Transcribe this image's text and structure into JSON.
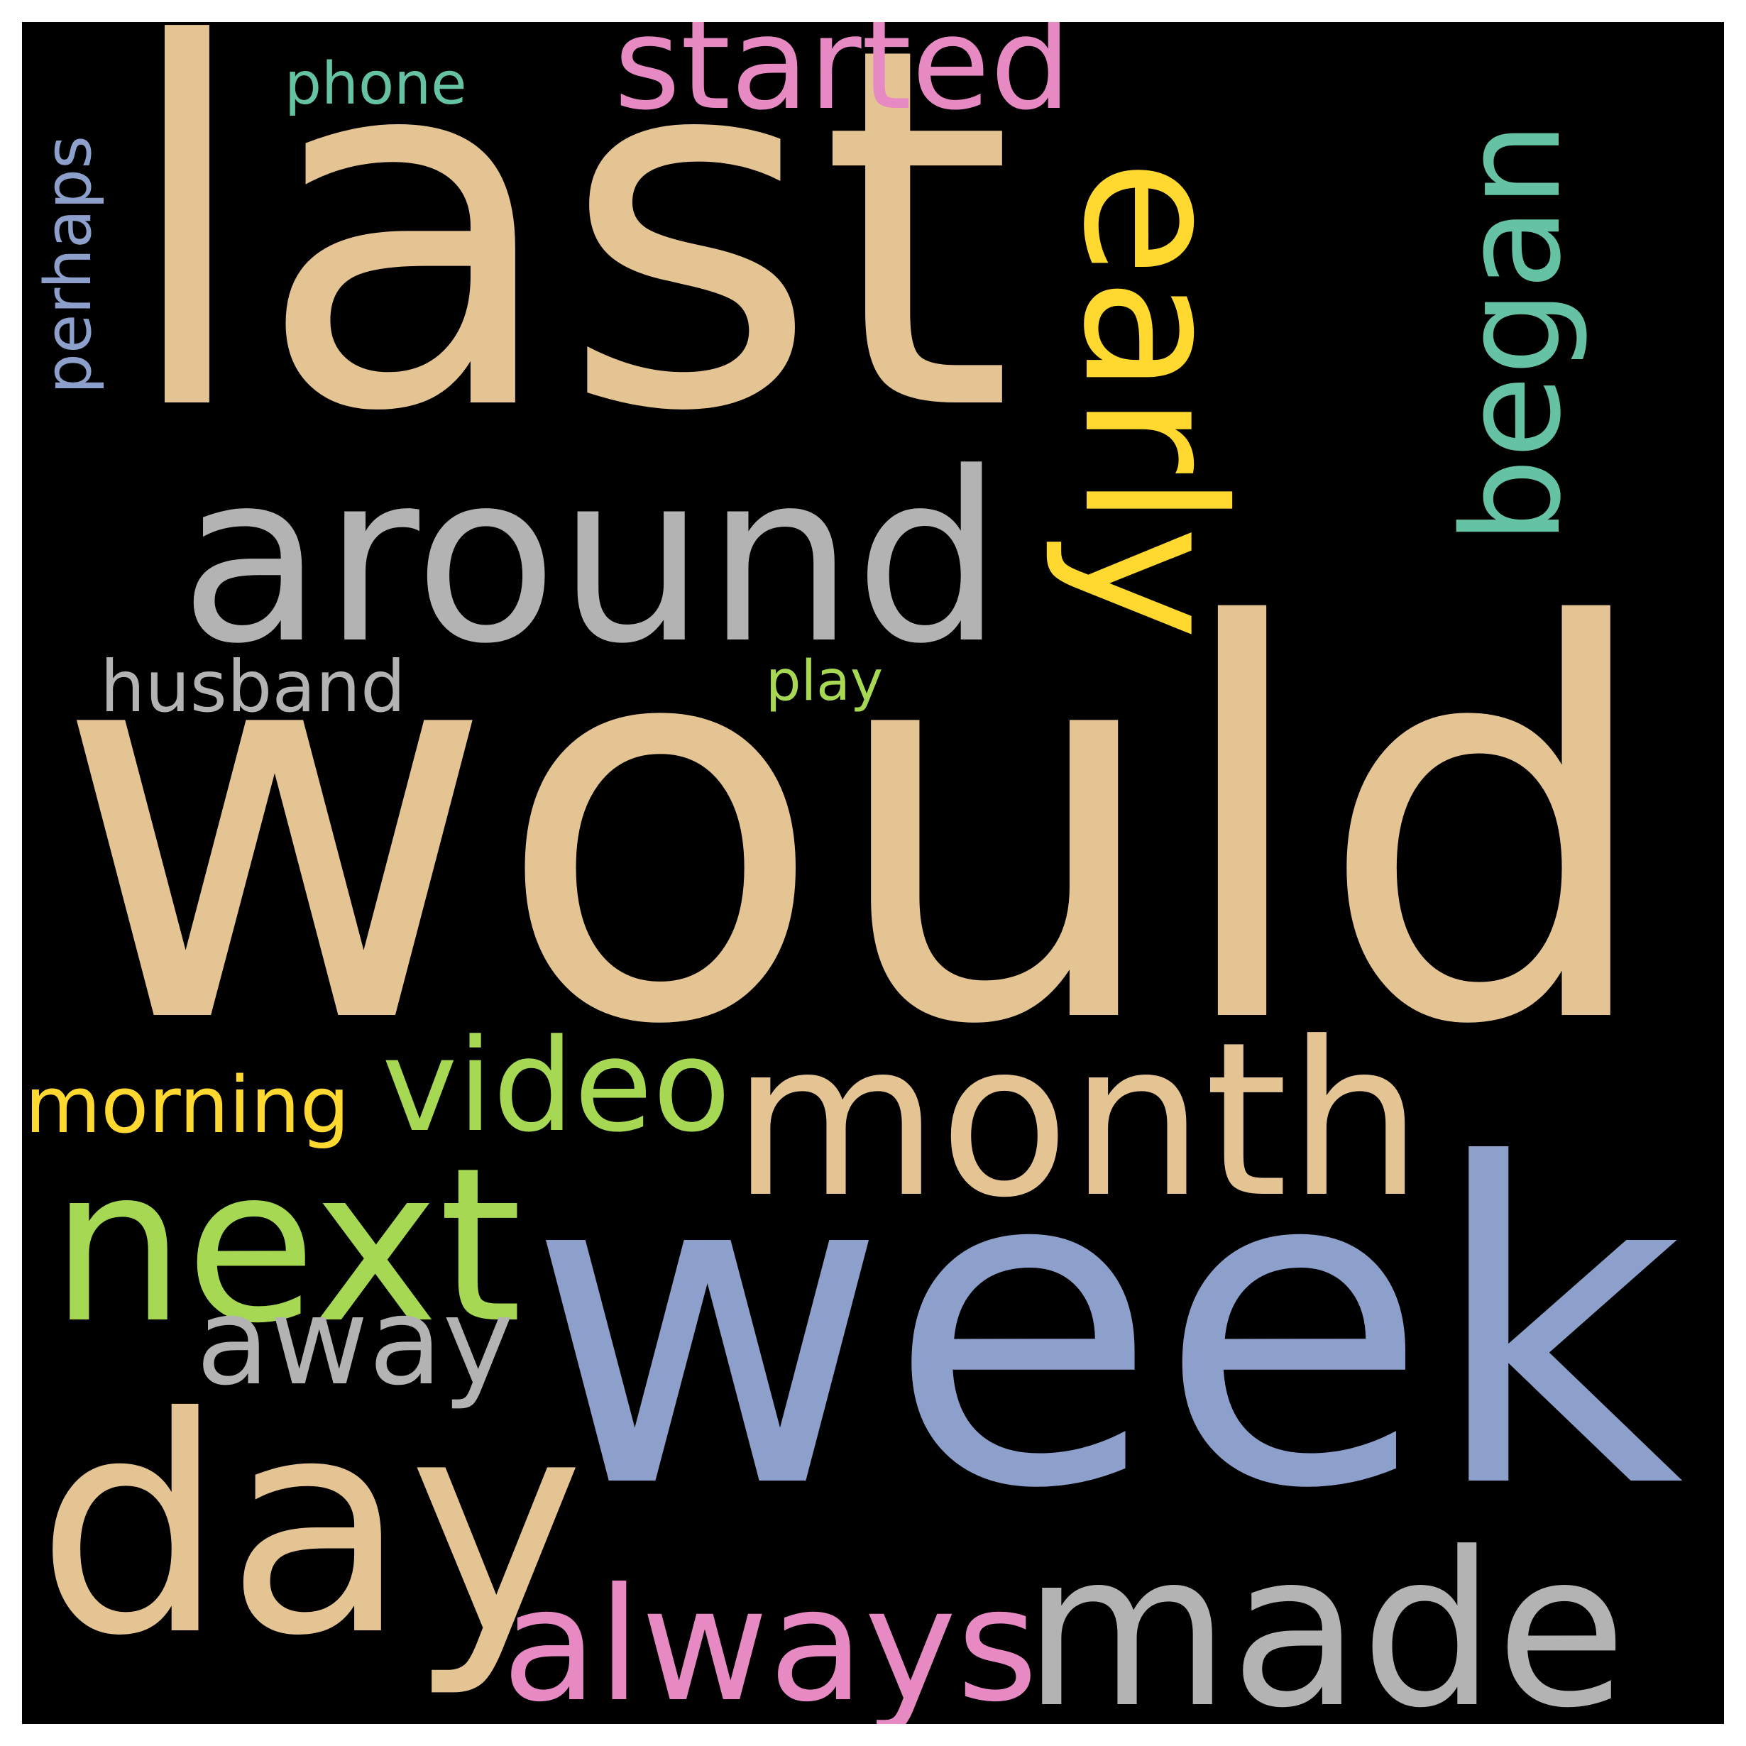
{
  "colors": {
    "background": "#000000",
    "frame": "#ffffff"
  },
  "words": [
    {
      "id": "last",
      "text": "last",
      "color": "#e5c494"
    },
    {
      "id": "would",
      "text": "would",
      "color": "#e5c494"
    },
    {
      "id": "week",
      "text": "week",
      "color": "#8da0cb"
    },
    {
      "id": "day",
      "text": "day",
      "color": "#e5c494"
    },
    {
      "id": "around",
      "text": "around",
      "color": "#b3b3b3"
    },
    {
      "id": "month",
      "text": "month",
      "color": "#e5c494"
    },
    {
      "id": "early",
      "text": "early",
      "color": "#ffd92f"
    },
    {
      "id": "made",
      "text": "made",
      "color": "#b3b3b3"
    },
    {
      "id": "next",
      "text": "next",
      "color": "#a6d854"
    },
    {
      "id": "always",
      "text": "always",
      "color": "#e78ac3"
    },
    {
      "id": "began",
      "text": "began",
      "color": "#66c2a5"
    },
    {
      "id": "started",
      "text": "started",
      "color": "#e78ac3"
    },
    {
      "id": "video",
      "text": "video",
      "color": "#a6d854"
    },
    {
      "id": "away",
      "text": "away",
      "color": "#b3b3b3"
    },
    {
      "id": "morning",
      "text": "morning",
      "color": "#ffd92f"
    },
    {
      "id": "husband",
      "text": "husband",
      "color": "#b3b3b3"
    },
    {
      "id": "perhaps",
      "text": "perhaps",
      "color": "#8da0cb"
    },
    {
      "id": "phone",
      "text": "phone",
      "color": "#66c2a5"
    },
    {
      "id": "play",
      "text": "play",
      "color": "#a6d854"
    }
  ]
}
